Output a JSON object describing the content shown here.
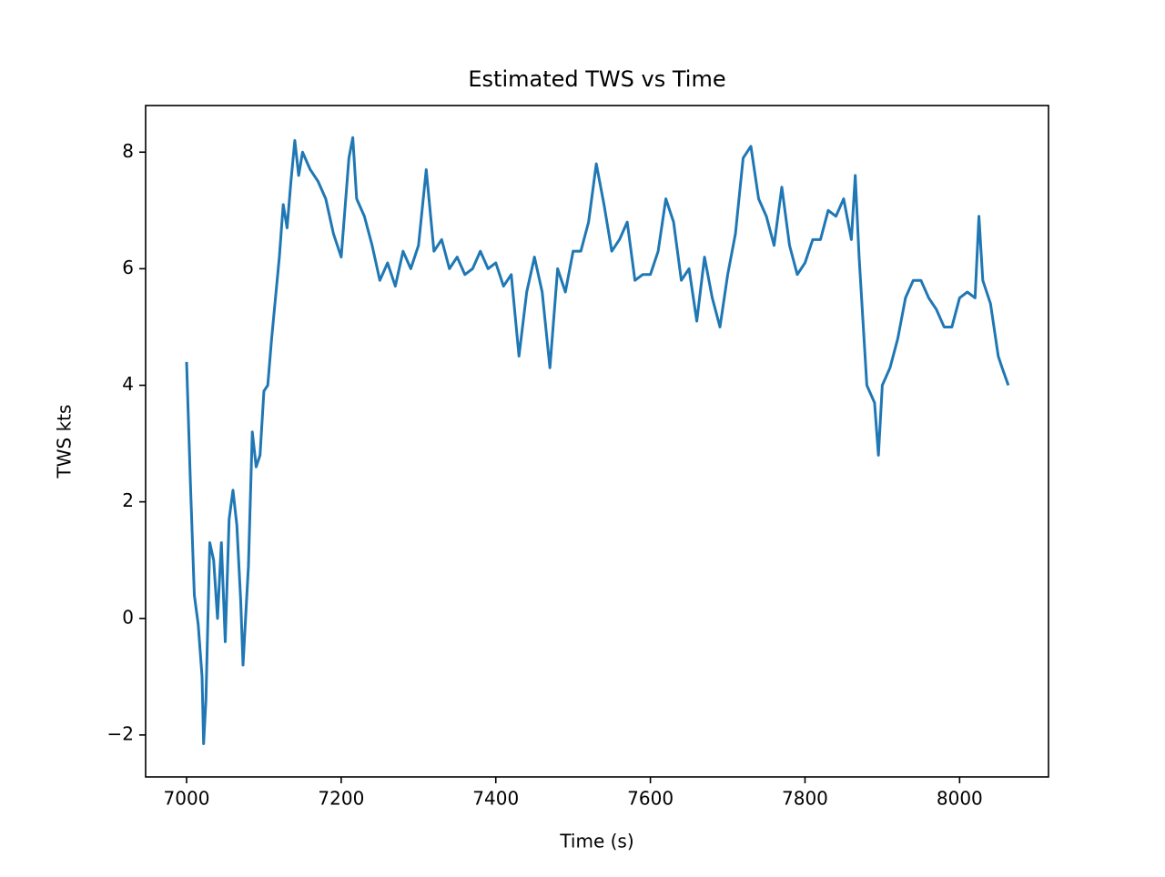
{
  "chart_data": {
    "type": "line",
    "title": "Estimated TWS vs Time",
    "xlabel": "Time (s)",
    "ylabel": "TWS kts",
    "color": "#1f77b4",
    "x": [
      7000,
      7005,
      7010,
      7015,
      7020,
      7022,
      7025,
      7030,
      7035,
      7040,
      7045,
      7050,
      7055,
      7060,
      7065,
      7070,
      7073,
      7080,
      7085,
      7090,
      7095,
      7100,
      7105,
      7110,
      7115,
      7120,
      7125,
      7130,
      7135,
      7140,
      7145,
      7150,
      7160,
      7170,
      7180,
      7190,
      7200,
      7210,
      7215,
      7220,
      7230,
      7240,
      7250,
      7260,
      7270,
      7280,
      7290,
      7300,
      7310,
      7320,
      7330,
      7340,
      7350,
      7360,
      7370,
      7380,
      7390,
      7400,
      7410,
      7420,
      7430,
      7440,
      7450,
      7460,
      7470,
      7480,
      7490,
      7500,
      7510,
      7520,
      7530,
      7540,
      7550,
      7560,
      7570,
      7580,
      7590,
      7600,
      7610,
      7620,
      7630,
      7640,
      7650,
      7660,
      7670,
      7680,
      7690,
      7700,
      7710,
      7720,
      7730,
      7740,
      7750,
      7760,
      7770,
      7780,
      7790,
      7800,
      7810,
      7820,
      7830,
      7840,
      7850,
      7860,
      7865,
      7870,
      7880,
      7890,
      7895,
      7900,
      7910,
      7920,
      7930,
      7940,
      7950,
      7960,
      7970,
      7980,
      7990,
      8000,
      8010,
      8020,
      8025,
      8030,
      8040,
      8050,
      8055,
      8063
    ],
    "values": [
      4.4,
      2.3,
      0.4,
      -0.1,
      -1.0,
      -2.15,
      -1.4,
      1.3,
      1.0,
      0.0,
      1.3,
      -0.4,
      1.7,
      2.2,
      1.6,
      0.3,
      -0.8,
      0.9,
      3.2,
      2.6,
      2.8,
      3.9,
      4.0,
      4.8,
      5.5,
      6.2,
      7.1,
      6.7,
      7.5,
      8.2,
      7.6,
      8.0,
      7.7,
      7.5,
      7.2,
      6.6,
      6.2,
      7.9,
      8.25,
      7.2,
      6.9,
      6.4,
      5.8,
      6.1,
      5.7,
      6.3,
      6.0,
      6.4,
      7.7,
      6.3,
      6.5,
      6.0,
      6.2,
      5.9,
      6.0,
      6.3,
      6.0,
      6.1,
      5.7,
      5.9,
      4.5,
      5.6,
      6.2,
      5.6,
      4.3,
      6.0,
      5.6,
      6.3,
      6.3,
      6.8,
      7.8,
      7.1,
      6.3,
      6.5,
      6.8,
      5.8,
      5.9,
      5.9,
      6.3,
      7.2,
      6.8,
      5.8,
      6.0,
      5.1,
      6.2,
      5.5,
      5.0,
      5.9,
      6.6,
      7.9,
      8.1,
      7.2,
      6.9,
      6.4,
      7.4,
      6.4,
      5.9,
      6.1,
      6.5,
      6.5,
      7.0,
      6.9,
      7.2,
      6.5,
      7.6,
      6.2,
      4.0,
      3.7,
      2.8,
      4.0,
      4.3,
      4.8,
      5.5,
      5.8,
      5.8,
      5.5,
      5.3,
      5.0,
      5.0,
      5.5,
      5.6,
      5.5,
      6.9,
      5.8,
      5.4,
      4.5,
      4.3,
      4.0
    ],
    "xlim": [
      6947,
      8115
    ],
    "xticks": [
      7000,
      7200,
      7400,
      7600,
      7800,
      8000
    ],
    "ylim": [
      -2.72,
      8.8
    ],
    "yticks": [
      {
        "value": -2,
        "label": "−2"
      },
      0,
      2,
      4,
      6,
      8
    ]
  }
}
